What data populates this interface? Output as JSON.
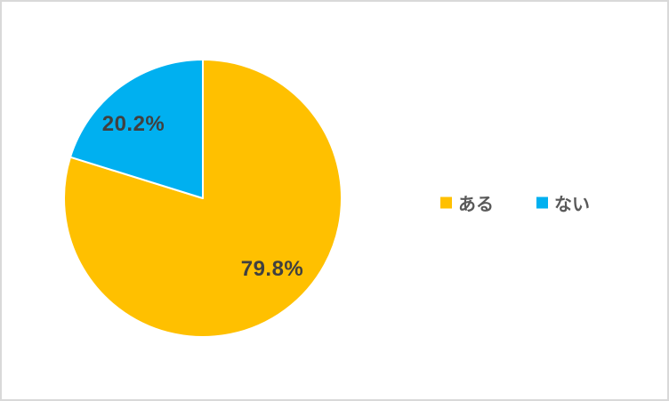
{
  "window": {
    "background": "#ffffff",
    "border_color": "#d9d9d9"
  },
  "chart_data": {
    "type": "pie",
    "title": "",
    "categories": [
      "ある",
      "ない"
    ],
    "values": [
      79.8,
      20.2
    ],
    "data_labels": [
      "79.8%",
      "20.2%"
    ],
    "colors": [
      "#FFC000",
      "#00B0F0"
    ],
    "label_color": "#404040",
    "start_angle_deg": 0,
    "direction": "clockwise",
    "slice_border_color": "#ffffff",
    "legend": {
      "position": "right",
      "text_color": "#595959",
      "entries": [
        {
          "label": "ある",
          "color": "#FFC000"
        },
        {
          "label": "ない",
          "color": "#00B0F0"
        }
      ]
    }
  }
}
